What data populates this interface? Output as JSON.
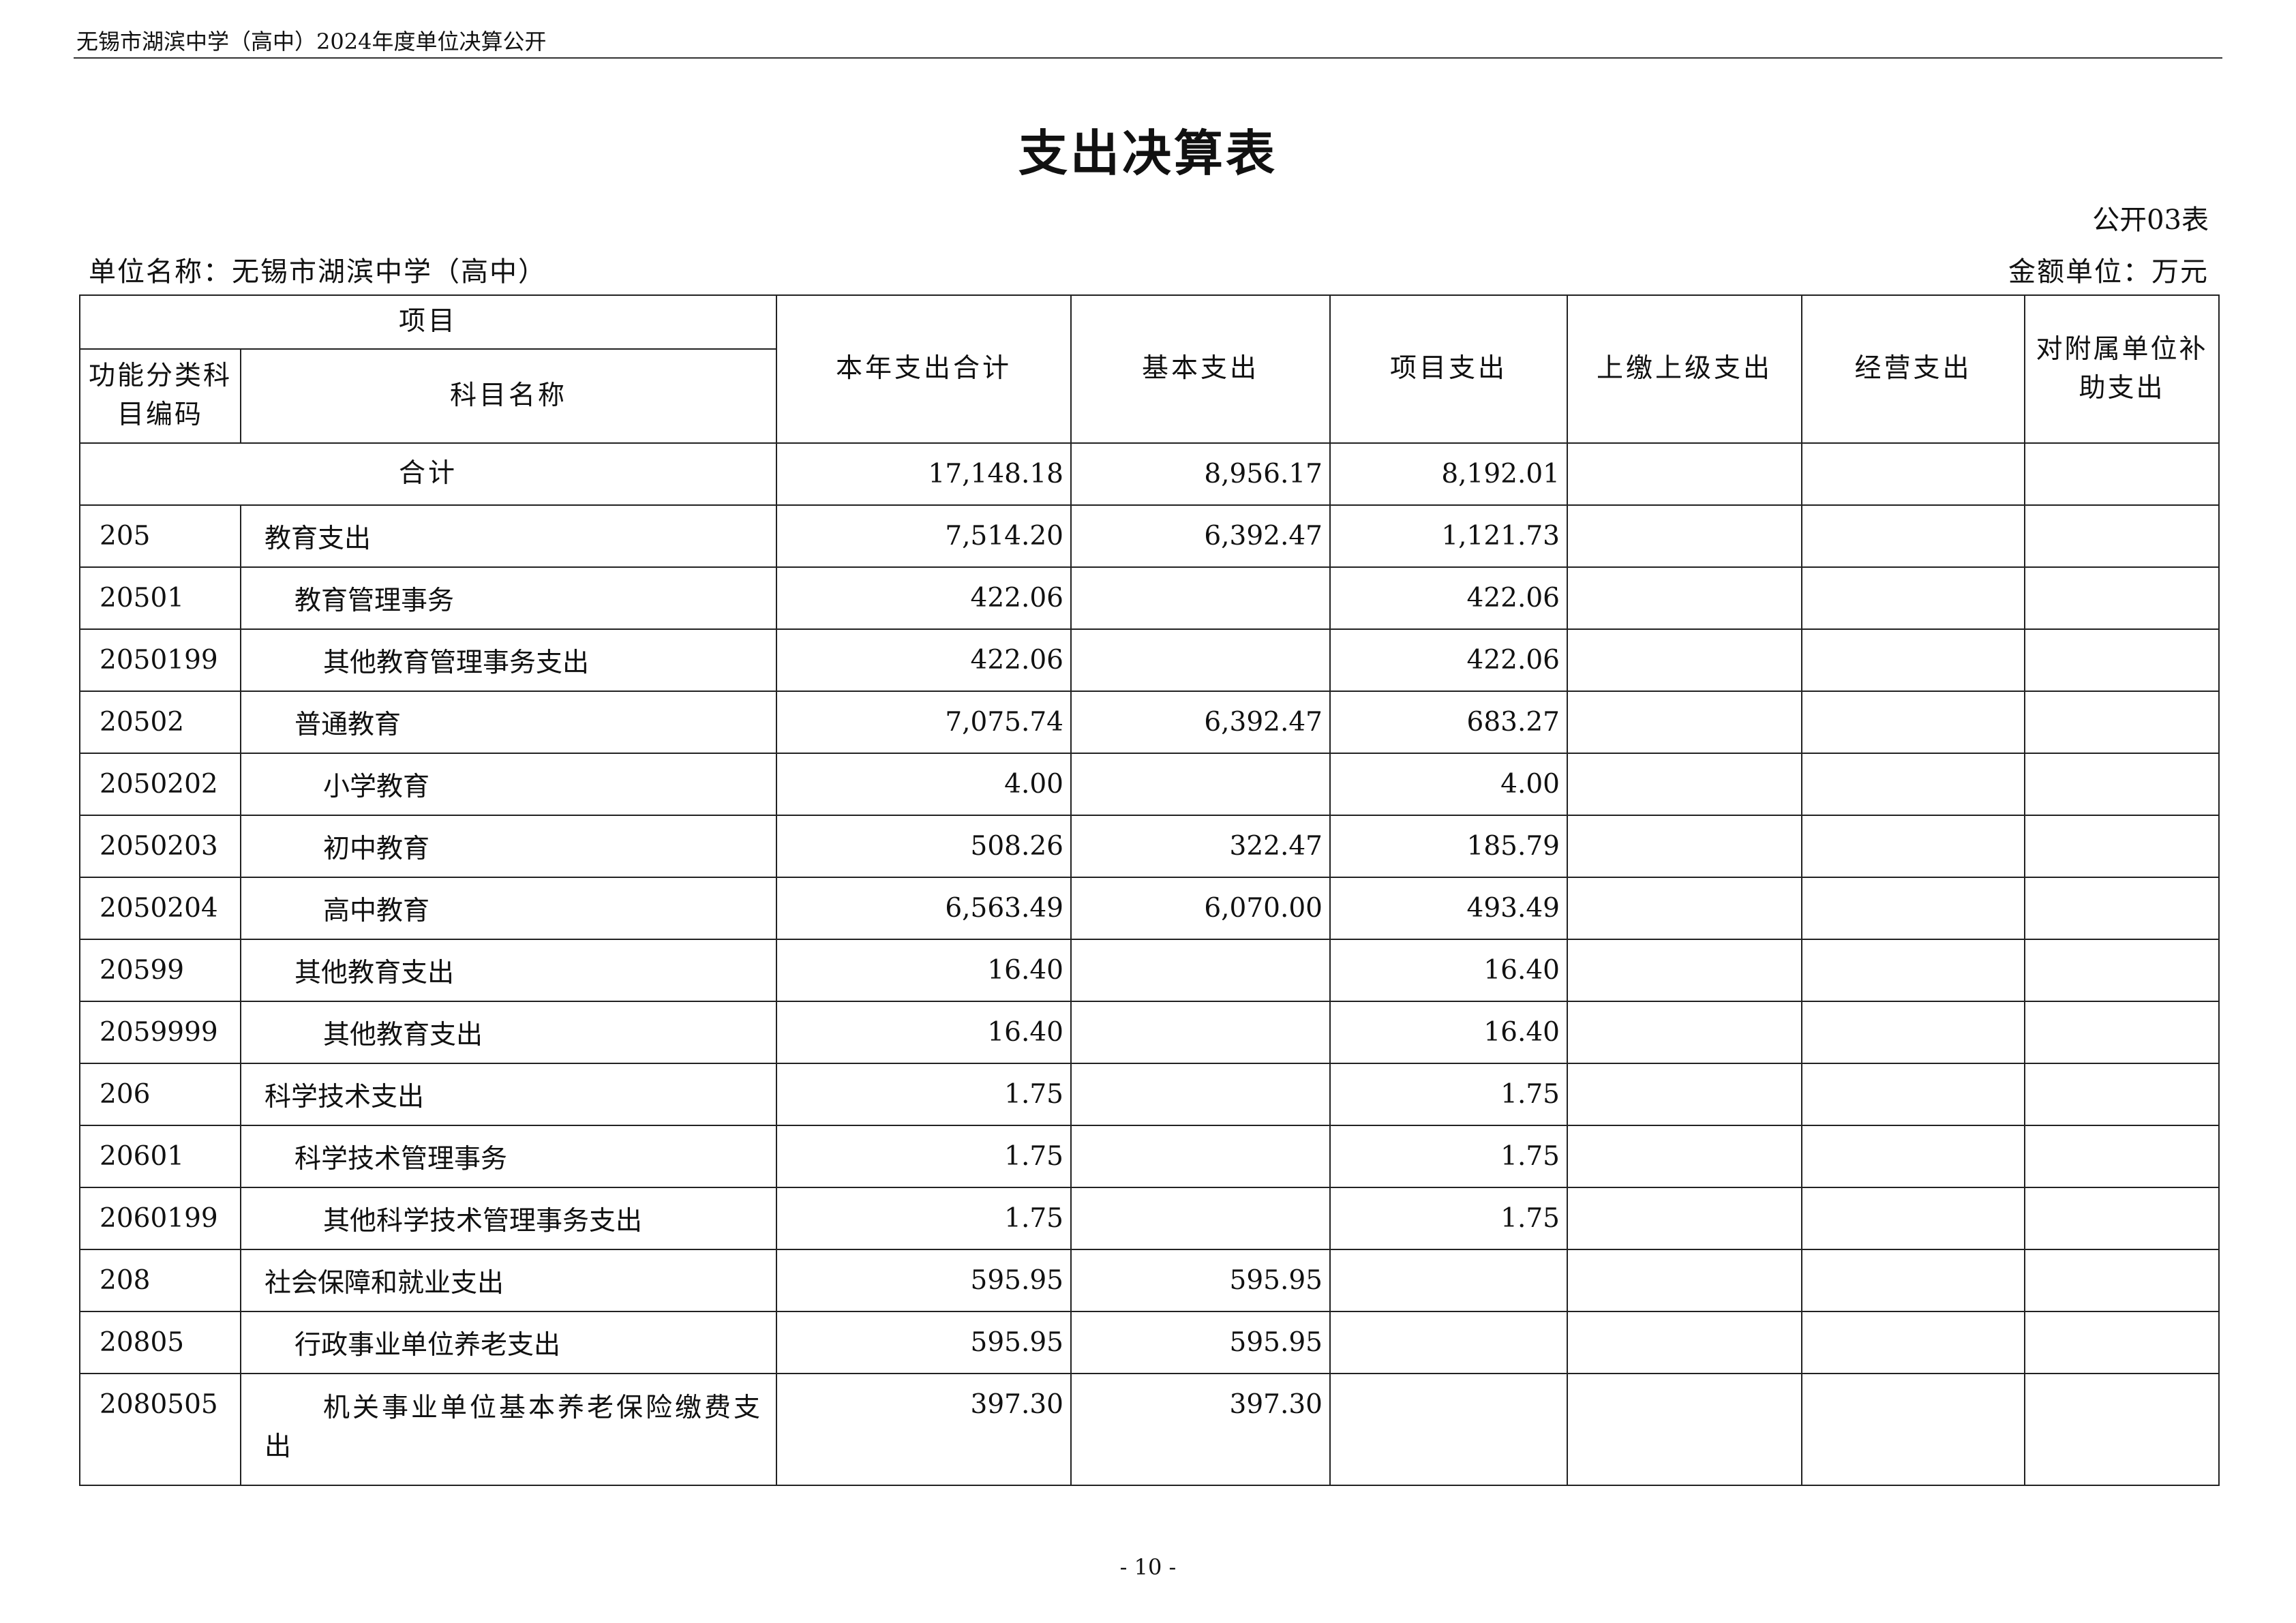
{
  "running_header": "无锡市湖滨中学（高中）2024年度单位决算公开",
  "title": "支出决算表",
  "form_no": "公开03表",
  "unit_name": "单位名称：无锡市湖滨中学（高中）",
  "amount_unit": "金额单位：万元",
  "headers": {
    "item": "项目",
    "code": "功能分类科目编码",
    "name": "科目名称",
    "total": "本年支出合计",
    "basic": "基本支出",
    "project": "项目支出",
    "upper": "上缴上级支出",
    "business": "经营支出",
    "subsidy": "对附属单位补助支出"
  },
  "total_row": {
    "label": "合计",
    "total": "17,148.18",
    "basic": "8,956.17",
    "project": "8,192.01"
  },
  "rows": [
    {
      "code": "205",
      "name": "教育支出",
      "level": 0,
      "total": "7,514.20",
      "basic": "6,392.47",
      "project": "1,121.73"
    },
    {
      "code": "20501",
      "name": "教育管理事务",
      "level": 1,
      "total": "422.06",
      "basic": "",
      "project": "422.06"
    },
    {
      "code": "2050199",
      "name": "其他教育管理事务支出",
      "level": 2,
      "total": "422.06",
      "basic": "",
      "project": "422.06"
    },
    {
      "code": "20502",
      "name": "普通教育",
      "level": 1,
      "total": "7,075.74",
      "basic": "6,392.47",
      "project": "683.27"
    },
    {
      "code": "2050202",
      "name": "小学教育",
      "level": 2,
      "total": "4.00",
      "basic": "",
      "project": "4.00"
    },
    {
      "code": "2050203",
      "name": "初中教育",
      "level": 2,
      "total": "508.26",
      "basic": "322.47",
      "project": "185.79"
    },
    {
      "code": "2050204",
      "name": "高中教育",
      "level": 2,
      "total": "6,563.49",
      "basic": "6,070.00",
      "project": "493.49"
    },
    {
      "code": "20599",
      "name": "其他教育支出",
      "level": 1,
      "total": "16.40",
      "basic": "",
      "project": "16.40"
    },
    {
      "code": "2059999",
      "name": "其他教育支出",
      "level": 2,
      "total": "16.40",
      "basic": "",
      "project": "16.40"
    },
    {
      "code": "206",
      "name": "科学技术支出",
      "level": 0,
      "total": "1.75",
      "basic": "",
      "project": "1.75"
    },
    {
      "code": "20601",
      "name": "科学技术管理事务",
      "level": 1,
      "total": "1.75",
      "basic": "",
      "project": "1.75"
    },
    {
      "code": "2060199",
      "name": "其他科学技术管理事务支出",
      "level": 2,
      "total": "1.75",
      "basic": "",
      "project": "1.75"
    },
    {
      "code": "208",
      "name": "社会保障和就业支出",
      "level": 0,
      "total": "595.95",
      "basic": "595.95",
      "project": ""
    },
    {
      "code": "20805",
      "name": "行政事业单位养老支出",
      "level": 1,
      "total": "595.95",
      "basic": "595.95",
      "project": ""
    },
    {
      "code": "2080505",
      "name": "机关事业单位基本养老保险缴费支出",
      "level": 2,
      "total": "397.30",
      "basic": "397.30",
      "project": ""
    }
  ],
  "page_number": "- 10 -"
}
